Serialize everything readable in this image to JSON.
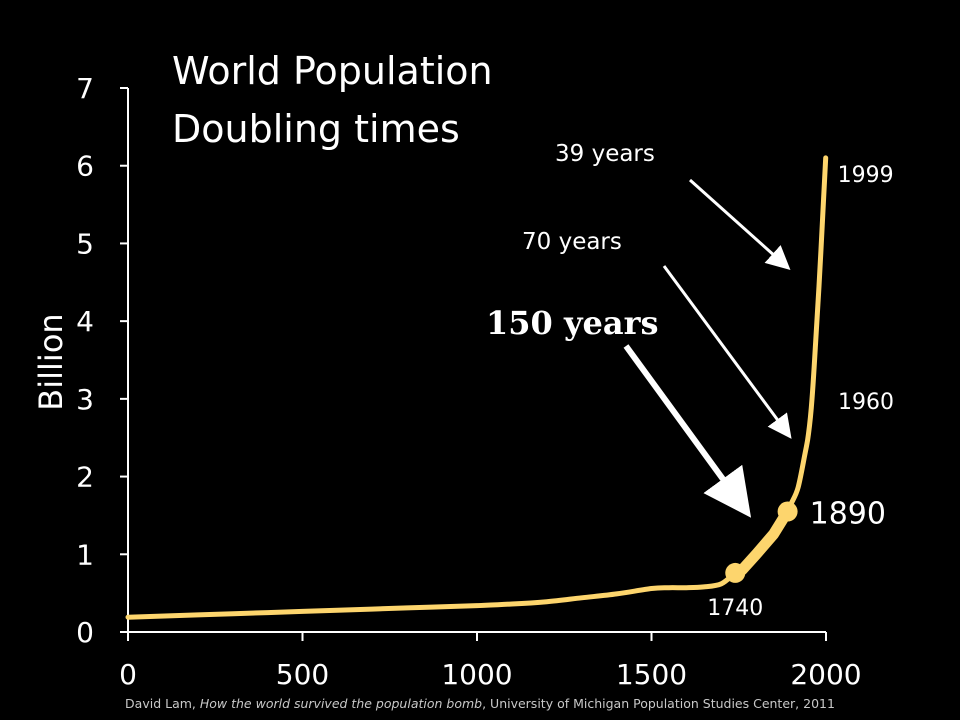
{
  "colors": {
    "background": "#000000",
    "curve": "#fdd56d",
    "text": "#ffffff",
    "axis": "#ffffff",
    "credit": "#c8c8c8"
  },
  "chart_data": {
    "type": "line",
    "title": [
      "World Population",
      "Doubling times"
    ],
    "xlabel": "",
    "ylabel": "Billion",
    "xlim": [
      0,
      2000
    ],
    "ylim": [
      0,
      7
    ],
    "x_ticks": [
      0,
      500,
      1000,
      1500,
      2000
    ],
    "y_ticks": [
      0,
      1,
      2,
      3,
      4,
      5,
      6,
      7
    ],
    "grid": false,
    "series": [
      {
        "x": [
          0,
          200,
          400,
          600,
          800,
          1000,
          1100,
          1200,
          1300,
          1400,
          1500,
          1550,
          1600,
          1650,
          1700,
          1740,
          1760,
          1800,
          1850,
          1890,
          1900,
          1920,
          1940,
          1950,
          1960,
          1970,
          1980,
          1990,
          1999
        ],
        "y": [
          0.19,
          0.22,
          0.25,
          0.28,
          0.31,
          0.34,
          0.36,
          0.39,
          0.44,
          0.49,
          0.56,
          0.57,
          0.57,
          0.58,
          0.62,
          0.76,
          0.8,
          1.0,
          1.26,
          1.55,
          1.65,
          1.86,
          2.3,
          2.55,
          3.0,
          3.7,
          4.45,
          5.3,
          6.1
        ]
      }
    ],
    "markers": [
      {
        "x": 1740,
        "y": 0.76
      },
      {
        "x": 1890,
        "y": 1.55
      }
    ],
    "year_labels": [
      {
        "text": "1740",
        "x": 1740,
        "y": 0.76,
        "big": false
      },
      {
        "text": "1890",
        "x": 1890,
        "y": 1.55,
        "big": true
      },
      {
        "text": "1960",
        "x": 1960,
        "y": 3.0,
        "big": false
      },
      {
        "text": "1999",
        "x": 1999,
        "y": 6.1,
        "big": false
      }
    ],
    "annotations": [
      {
        "text": "150 years",
        "bold": true
      },
      {
        "text": "70 years",
        "bold": false
      },
      {
        "text": "39 years",
        "bold": false
      }
    ]
  },
  "credit": {
    "author": "David Lam, ",
    "work": "How the world survived the population bomb",
    "publisher": ", University of Michigan Population Studies Center, 2011"
  }
}
